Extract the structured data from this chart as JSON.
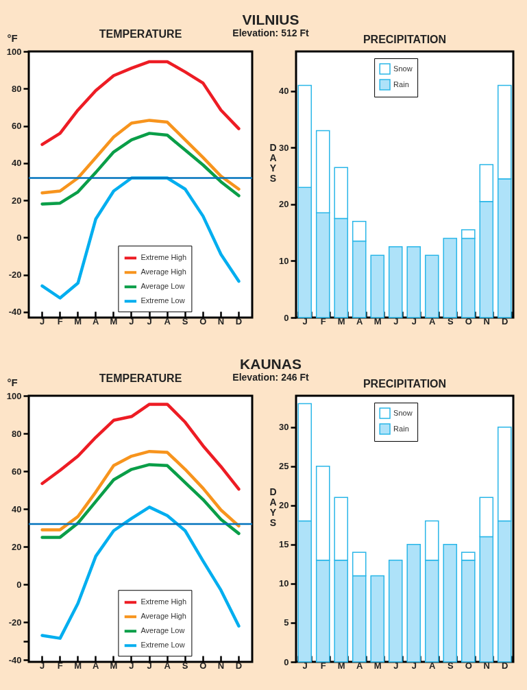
{
  "chart_data": [
    {
      "type": "line",
      "title": "TEMPERATURE",
      "ylabel": "°F",
      "annotations": [
        "VILNIUS",
        "Elevation: 512 Ft"
      ],
      "categories": [
        "J",
        "F",
        "M",
        "A",
        "M",
        "J",
        "J",
        "A",
        "S",
        "O",
        "N",
        "D"
      ],
      "ylim": [
        -43,
        100
      ],
      "yticks": [
        -40,
        -20,
        0,
        20,
        40,
        60,
        80,
        100
      ],
      "legend": "bottom",
      "ref_lines": [
        {
          "axis": "y",
          "value": 32,
          "color": "#0072bc"
        }
      ],
      "series": [
        {
          "name": "Extreme High",
          "color": "#ed1c24",
          "values": [
            50,
            56,
            68.5,
            79,
            87,
            91,
            94.5,
            94.5,
            89,
            83,
            68.5,
            58.5
          ]
        },
        {
          "name": "Average High",
          "color": "#f7941d",
          "values": [
            24,
            25,
            32,
            43,
            54,
            61.5,
            63,
            62,
            52.5,
            43,
            33,
            26
          ]
        },
        {
          "name": "Average Low",
          "color": "#0a9e48",
          "values": [
            18,
            18.5,
            24.5,
            35,
            46,
            52.5,
            56,
            55,
            47,
            39,
            30,
            22.5
          ]
        },
        {
          "name": "Extreme Low",
          "color": "#00aeef",
          "values": [
            -26,
            -32.5,
            -24.5,
            10,
            25,
            32,
            32,
            32,
            26,
            11.5,
            -9,
            -23.5
          ]
        }
      ]
    },
    {
      "type": "bar",
      "stacked": true,
      "title": "PRECIPITATION",
      "ylabel": "DAYS",
      "categories": [
        "J",
        "F",
        "M",
        "A",
        "M",
        "J",
        "J",
        "A",
        "S",
        "O",
        "N",
        "D"
      ],
      "ylim": [
        0,
        47
      ],
      "yticks": [
        0,
        10,
        20,
        30,
        40
      ],
      "legend": "top",
      "series": [
        {
          "name": "Rain",
          "color": "#aee2f9",
          "values": [
            23,
            18.5,
            17.5,
            13.5,
            11,
            12.5,
            12.5,
            11,
            14,
            14,
            20.5,
            24.5
          ]
        },
        {
          "name": "Snow",
          "color": "#ffffff",
          "values": [
            18,
            14.5,
            9,
            3.5,
            null,
            null,
            null,
            null,
            null,
            1.5,
            6.5,
            16.5
          ]
        }
      ]
    },
    {
      "type": "line",
      "title": "TEMPERATURE",
      "ylabel": "°F",
      "annotations": [
        "KAUNAS",
        "Elevation: 246 Ft"
      ],
      "categories": [
        "J",
        "F",
        "M",
        "A",
        "M",
        "J",
        "J",
        "A",
        "S",
        "O",
        "N",
        "D"
      ],
      "ylim": [
        -41,
        100
      ],
      "yticks": [
        -40,
        {
          "value": -30,
          "label": null
        },
        -20,
        0,
        20,
        40,
        60,
        80,
        100
      ],
      "legend": "bottom",
      "ref_lines": [
        {
          "axis": "y",
          "value": 32,
          "color": "#0072bc"
        }
      ],
      "series": [
        {
          "name": "Extreme High",
          "color": "#ed1c24",
          "values": [
            53.5,
            60.5,
            68,
            78,
            87,
            89,
            95.5,
            95.5,
            86,
            73.5,
            62.5,
            50.5
          ]
        },
        {
          "name": "Average High",
          "color": "#f7941d",
          "values": [
            29,
            29,
            36,
            49,
            63,
            68,
            70.5,
            70,
            61,
            51,
            39.5,
            31
          ]
        },
        {
          "name": "Average Low",
          "color": "#0a9e48",
          "values": [
            25,
            25,
            32.5,
            44,
            55.5,
            61,
            63.5,
            63,
            54,
            45,
            34.5,
            27
          ]
        },
        {
          "name": "Extreme Low",
          "color": "#00aeef",
          "values": [
            -27,
            -28.5,
            -10,
            15,
            28.5,
            35,
            41,
            36.5,
            28.5,
            12.5,
            -3,
            -22
          ]
        }
      ]
    },
    {
      "type": "bar",
      "stacked": true,
      "title": "PRECIPITATION",
      "ylabel": "DAYS",
      "categories": [
        "J",
        "F",
        "M",
        "A",
        "M",
        "J",
        "J",
        "A",
        "S",
        "O",
        "N",
        "D"
      ],
      "ylim": [
        0,
        34
      ],
      "yticks": [
        0,
        5,
        10,
        15,
        20,
        25,
        30
      ],
      "legend": "top",
      "series": [
        {
          "name": "Rain",
          "color": "#aee2f9",
          "values": [
            18,
            13,
            13,
            11,
            11,
            13,
            15,
            13,
            15,
            13,
            16,
            18
          ]
        },
        {
          "name": "Snow",
          "color": "#ffffff",
          "values": [
            15,
            12,
            8,
            3,
            null,
            null,
            null,
            5,
            null,
            1,
            5,
            12
          ]
        }
      ]
    }
  ]
}
